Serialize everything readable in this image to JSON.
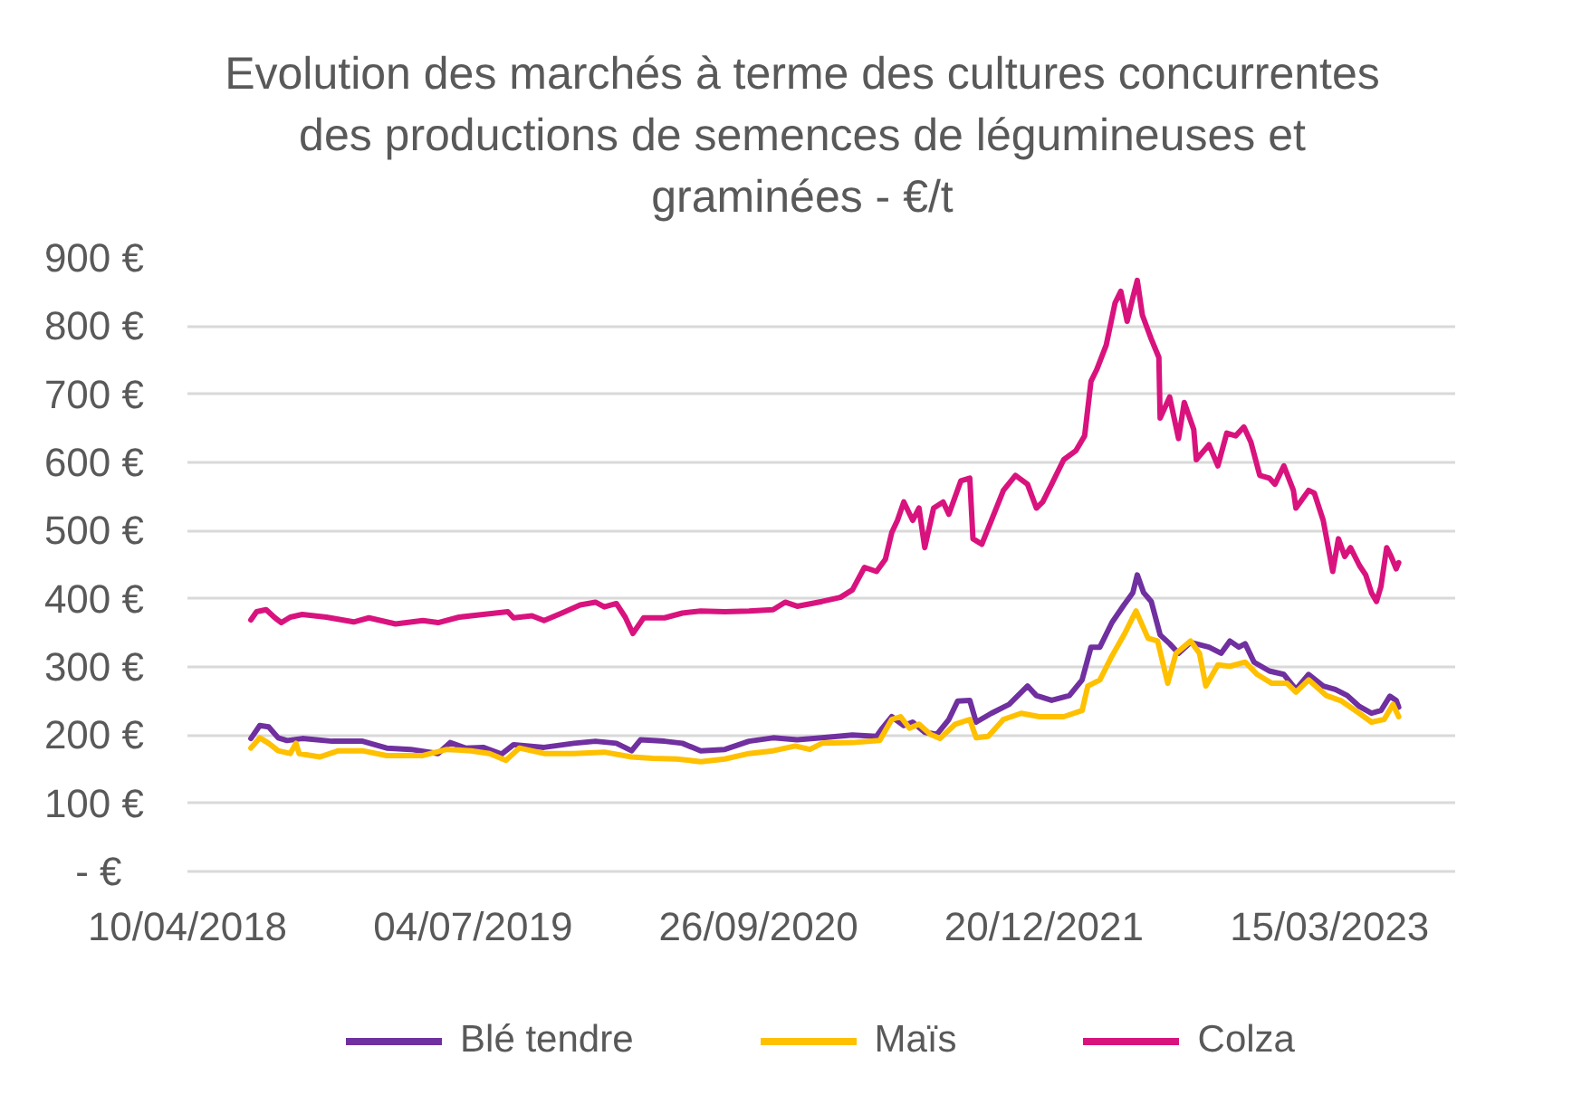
{
  "chart_data": {
    "type": "line",
    "title": "Evolution des marchés à terme des cultures concurrentes des productions de semences de légumineuses et graminées - €/t",
    "xlim": [
      "2018-04-10",
      "2023-09-29"
    ],
    "xticks": [
      {
        "value": "2018-04-10",
        "label": "10/04/2018"
      },
      {
        "value": "2019-07-04",
        "label": "04/07/2019"
      },
      {
        "value": "2020-09-26",
        "label": "26/09/2020"
      },
      {
        "value": "2021-12-20",
        "label": "20/12/2021"
      },
      {
        "value": "2023-03-15",
        "label": "15/03/2023"
      }
    ],
    "ylim": [
      0,
      900
    ],
    "yticks": [
      {
        "value": 0,
        "label": "-   €"
      },
      {
        "value": 100,
        "label": "100 €"
      },
      {
        "value": 200,
        "label": "200 €"
      },
      {
        "value": 300,
        "label": "300 €"
      },
      {
        "value": 400,
        "label": "400 €"
      },
      {
        "value": 500,
        "label": "500 €"
      },
      {
        "value": 600,
        "label": "600 €"
      },
      {
        "value": 700,
        "label": "700 €"
      },
      {
        "value": 800,
        "label": "800 €"
      },
      {
        "value": 900,
        "label": "900 €"
      }
    ],
    "grid": "y",
    "legend": "bottom",
    "series": [
      {
        "name": "Blé tendre",
        "color": "#7030a0",
        "x": [
          "2018-07-19",
          "2018-08-02",
          "2018-08-16",
          "2018-08-31",
          "2018-09-14",
          "2018-10-08",
          "2018-11-24",
          "2019-01-11",
          "2019-02-18",
          "2019-03-28",
          "2019-05-10",
          "2019-05-29",
          "2019-06-22",
          "2019-07-20",
          "2019-08-18",
          "2019-09-06",
          "2019-10-24",
          "2019-12-10",
          "2020-01-13",
          "2020-02-15",
          "2020-03-10",
          "2020-03-24",
          "2020-05-01",
          "2020-05-29",
          "2020-06-27",
          "2020-08-04",
          "2020-09-11",
          "2020-10-19",
          "2020-11-26",
          "2021-01-04",
          "2021-02-21",
          "2021-03-31",
          "2021-04-09",
          "2021-04-24",
          "2021-05-13",
          "2021-05-27",
          "2021-06-15",
          "2021-07-04",
          "2021-07-23",
          "2021-08-06",
          "2021-08-25",
          "2021-09-04",
          "2021-09-28",
          "2021-10-26",
          "2021-11-24",
          "2021-12-08",
          "2022-01-01",
          "2022-01-29",
          "2022-02-18",
          "2022-03-04",
          "2022-03-18",
          "2022-04-06",
          "2022-04-25",
          "2022-05-09",
          "2022-05-16",
          "2022-05-26",
          "2022-06-07",
          "2022-06-21",
          "2022-07-06",
          "2022-07-20",
          "2022-08-08",
          "2022-09-06",
          "2022-09-25",
          "2022-10-09",
          "2022-10-23",
          "2022-11-02",
          "2022-11-16",
          "2022-12-10",
          "2023-01-02",
          "2023-01-21",
          "2023-02-10",
          "2023-03-05",
          "2023-03-24",
          "2023-04-12",
          "2023-05-01",
          "2023-05-20",
          "2023-06-04",
          "2023-06-18",
          "2023-06-28",
          "2023-07-02"
        ],
        "values": [
          195,
          214,
          212,
          196,
          192,
          195,
          191,
          191,
          181,
          179,
          173,
          189,
          181,
          182,
          172,
          186,
          182,
          188,
          191,
          188,
          177,
          193,
          191,
          188,
          177,
          179,
          191,
          196,
          193,
          196,
          200,
          198,
          210,
          227,
          214,
          219,
          204,
          201,
          223,
          250,
          251,
          219,
          232,
          245,
          272,
          258,
          251,
          258,
          281,
          329,
          329,
          365,
          391,
          409,
          435,
          409,
          396,
          347,
          334,
          320,
          336,
          329,
          320,
          338,
          329,
          334,
          307,
          294,
          289,
          267,
          289,
          272,
          267,
          258,
          242,
          232,
          236,
          257,
          251,
          241
        ]
      },
      {
        "name": "Maïs",
        "color": "#ffc000",
        "x": [
          "2018-07-19",
          "2018-08-02",
          "2018-08-16",
          "2018-08-31",
          "2018-09-19",
          "2018-09-28",
          "2018-10-03",
          "2018-11-05",
          "2018-12-04",
          "2019-01-11",
          "2019-02-18",
          "2019-04-16",
          "2019-05-24",
          "2019-07-01",
          "2019-07-30",
          "2019-08-25",
          "2019-09-15",
          "2019-10-24",
          "2019-12-10",
          "2020-01-27",
          "2020-03-10",
          "2020-04-12",
          "2020-05-20",
          "2020-06-27",
          "2020-08-04",
          "2020-09-11",
          "2020-10-19",
          "2020-11-23",
          "2020-12-16",
          "2021-01-04",
          "2021-02-21",
          "2021-04-05",
          "2021-04-24",
          "2021-05-08",
          "2021-05-22",
          "2021-06-06",
          "2021-06-24",
          "2021-07-09",
          "2021-08-02",
          "2021-08-25",
          "2021-09-04",
          "2021-09-23",
          "2021-10-17",
          "2021-11-14",
          "2021-12-13",
          "2022-01-20",
          "2022-02-18",
          "2022-02-27",
          "2022-03-18",
          "2022-04-06",
          "2022-04-25",
          "2022-05-14",
          "2022-06-02",
          "2022-06-17",
          "2022-07-03",
          "2022-07-16",
          "2022-08-08",
          "2022-08-22",
          "2022-09-01",
          "2022-09-20",
          "2022-10-09",
          "2022-11-02",
          "2022-11-21",
          "2022-12-14",
          "2023-01-07",
          "2023-01-21",
          "2023-02-10",
          "2023-03-10",
          "2023-04-03",
          "2023-05-01",
          "2023-05-20",
          "2023-06-09",
          "2023-06-23",
          "2023-07-02"
        ],
        "values": [
          181,
          196,
          188,
          177,
          173,
          188,
          173,
          168,
          177,
          177,
          170,
          170,
          179,
          177,
          173,
          163,
          181,
          173,
          173,
          175,
          168,
          166,
          165,
          161,
          165,
          173,
          177,
          184,
          179,
          188,
          189,
          192,
          223,
          227,
          210,
          216,
          201,
          195,
          216,
          223,
          196,
          198,
          223,
          232,
          227,
          227,
          236,
          272,
          281,
          316,
          347,
          382,
          342,
          338,
          276,
          320,
          338,
          320,
          272,
          303,
          301,
          307,
          289,
          276,
          276,
          263,
          281,
          258,
          250,
          232,
          219,
          223,
          245,
          227
        ]
      },
      {
        "name": "Colza",
        "color": "#d9137e",
        "x": [
          "2018-07-19",
          "2018-07-28",
          "2018-08-12",
          "2018-08-26",
          "2018-09-05",
          "2018-09-19",
          "2018-10-08",
          "2018-11-15",
          "2018-12-28",
          "2019-01-21",
          "2019-03-04",
          "2019-04-16",
          "2019-05-10",
          "2019-06-12",
          "2019-07-20",
          "2019-08-28",
          "2019-09-06",
          "2019-10-05",
          "2019-10-24",
          "2019-11-21",
          "2019-12-20",
          "2020-01-13",
          "2020-01-27",
          "2020-02-15",
          "2020-02-29",
          "2020-03-12",
          "2020-03-29",
          "2020-05-01",
          "2020-05-29",
          "2020-06-27",
          "2020-08-04",
          "2020-09-11",
          "2020-10-19",
          "2020-11-07",
          "2020-11-26",
          "2021-01-04",
          "2021-02-02",
          "2021-02-21",
          "2021-03-12",
          "2021-03-31",
          "2021-04-14",
          "2021-04-24",
          "2021-05-03",
          "2021-05-13",
          "2021-05-27",
          "2021-06-06",
          "2021-06-15",
          "2021-06-29",
          "2021-07-14",
          "2021-07-23",
          "2021-08-11",
          "2021-08-25",
          "2021-08-30",
          "2021-09-13",
          "2021-09-28",
          "2021-10-17",
          "2021-11-05",
          "2021-11-24",
          "2021-12-08",
          "2021-12-18",
          "2022-01-01",
          "2022-01-20",
          "2022-02-08",
          "2022-02-22",
          "2022-03-04",
          "2022-03-13",
          "2022-03-28",
          "2022-04-11",
          "2022-04-20",
          "2022-04-30",
          "2022-05-09",
          "2022-05-16",
          "2022-05-24",
          "2022-06-07",
          "2022-06-19",
          "2022-06-21",
          "2022-07-06",
          "2022-07-20",
          "2022-07-29",
          "2022-08-13",
          "2022-08-17",
          "2022-09-06",
          "2022-09-20",
          "2022-10-04",
          "2022-10-18",
          "2022-10-31",
          "2022-11-11",
          "2022-11-25",
          "2022-12-10",
          "2022-12-19",
          "2023-01-02",
          "2023-01-17",
          "2023-01-21",
          "2023-02-10",
          "2023-02-19",
          "2023-03-05",
          "2023-03-20",
          "2023-03-29",
          "2023-04-08",
          "2023-04-17",
          "2023-05-01",
          "2023-05-11",
          "2023-05-20",
          "2023-05-28",
          "2023-06-04",
          "2023-06-13",
          "2023-06-20",
          "2023-06-28",
          "2023-07-02"
        ],
        "values": [
          369,
          381,
          384,
          372,
          365,
          373,
          377,
          373,
          366,
          372,
          363,
          368,
          365,
          373,
          377,
          381,
          372,
          375,
          368,
          379,
          391,
          395,
          388,
          393,
          373,
          349,
          372,
          372,
          379,
          382,
          381,
          382,
          384,
          395,
          389,
          396,
          402,
          413,
          446,
          440,
          458,
          497,
          515,
          542,
          515,
          533,
          475,
          533,
          542,
          524,
          573,
          577,
          488,
          480,
          515,
          559,
          581,
          568,
          533,
          542,
          568,
          604,
          617,
          639,
          719,
          736,
          772,
          834,
          851,
          807,
          842,
          867,
          816,
          781,
          754,
          665,
          696,
          635,
          688,
          648,
          604,
          626,
          595,
          643,
          639,
          652,
          630,
          581,
          577,
          568,
          595,
          559,
          533,
          559,
          555,
          515,
          440,
          488,
          462,
          475,
          449,
          435,
          409,
          396,
          418,
          475,
          462,
          444,
          453
        ]
      }
    ]
  }
}
